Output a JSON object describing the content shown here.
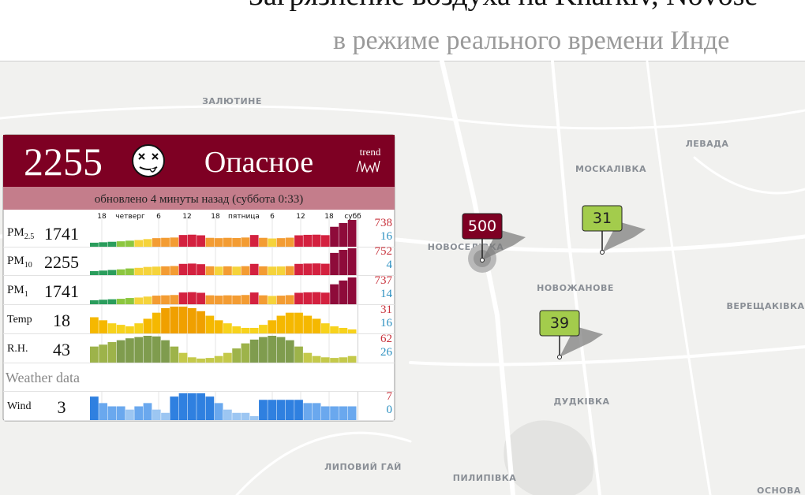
{
  "header": {
    "title": "Загрязнение воздуха на Kharkiv, Novose",
    "subtitle": "в режиме реального времени Инде"
  },
  "panel": {
    "aqi": 2255,
    "level": "Опасное",
    "trend_label": "trend",
    "updated": "обновлено 4 минуты назад (суббота 0:33)",
    "time_axis": [
      "18",
      "четверг",
      "6",
      "12",
      "18",
      "пятница",
      "6",
      "12",
      "18",
      "субб"
    ],
    "weather_heading": "Weather data",
    "rows": [
      {
        "name": "PM",
        "sub": "2.5",
        "value": 1741,
        "max": 738,
        "min": 16,
        "bars": [
          16,
          30,
          45,
          60,
          80,
          100,
          130,
          160,
          170,
          180,
          260,
          270,
          250,
          170,
          160,
          170,
          165,
          180,
          260,
          170,
          150,
          160,
          175,
          250,
          265,
          270,
          255,
          520,
          640,
          738
        ],
        "colors": [
          "#2a9d5c",
          "#2a9d5c",
          "#2a9d5c",
          "#8cc63f",
          "#8cc63f",
          "#f5d33b",
          "#f5d33b",
          "#f39c33",
          "#f39c33",
          "#f39c33",
          "#d3213f",
          "#d3213f",
          "#d3213f",
          "#f39c33",
          "#f39c33",
          "#f39c33",
          "#f39c33",
          "#f39c33",
          "#d3213f",
          "#f39c33",
          "#f5d33b",
          "#f39c33",
          "#f39c33",
          "#d3213f",
          "#d3213f",
          "#d3213f",
          "#d3213f",
          "#8e0b3a",
          "#8e0b3a",
          "#8e0b3a"
        ]
      },
      {
        "name": "PM",
        "sub": "10",
        "value": 2255,
        "max": 752,
        "min": 4,
        "bars": [
          4,
          20,
          40,
          60,
          90,
          110,
          140,
          150,
          160,
          170,
          240,
          250,
          230,
          160,
          150,
          160,
          150,
          165,
          240,
          160,
          150,
          155,
          165,
          240,
          250,
          255,
          245,
          600,
          700,
          752
        ],
        "colors": [
          "#2a9d5c",
          "#2a9d5c",
          "#2a9d5c",
          "#8cc63f",
          "#8cc63f",
          "#f5d33b",
          "#f5d33b",
          "#f5d33b",
          "#f39c33",
          "#f39c33",
          "#d3213f",
          "#d3213f",
          "#d3213f",
          "#f39c33",
          "#f5d33b",
          "#f39c33",
          "#f5d33b",
          "#f39c33",
          "#d3213f",
          "#f39c33",
          "#f5d33b",
          "#f5d33b",
          "#f39c33",
          "#d3213f",
          "#d3213f",
          "#d3213f",
          "#d3213f",
          "#8e0b3a",
          "#8e0b3a",
          "#8e0b3a"
        ]
      },
      {
        "name": "PM",
        "sub": "1",
        "value": 1741,
        "max": 737,
        "min": 14,
        "bars": [
          14,
          30,
          45,
          60,
          85,
          100,
          130,
          160,
          170,
          180,
          260,
          270,
          250,
          170,
          160,
          170,
          165,
          180,
          260,
          170,
          150,
          160,
          175,
          250,
          265,
          270,
          255,
          520,
          640,
          737
        ],
        "colors": [
          "#2a9d5c",
          "#2a9d5c",
          "#2a9d5c",
          "#8cc63f",
          "#8cc63f",
          "#f5d33b",
          "#f5d33b",
          "#f39c33",
          "#f39c33",
          "#f39c33",
          "#d3213f",
          "#d3213f",
          "#d3213f",
          "#f39c33",
          "#f39c33",
          "#f39c33",
          "#f39c33",
          "#f39c33",
          "#d3213f",
          "#f39c33",
          "#f5d33b",
          "#f39c33",
          "#f39c33",
          "#d3213f",
          "#d3213f",
          "#d3213f",
          "#d3213f",
          "#8e0b3a",
          "#8e0b3a",
          "#8e0b3a"
        ]
      },
      {
        "name": "Temp",
        "value": 18,
        "max": 31,
        "min": 16,
        "bars": [
          24,
          22,
          20,
          19,
          18,
          20,
          23,
          27,
          30,
          31,
          31,
          30,
          28,
          25,
          22,
          20,
          18,
          17,
          17,
          19,
          22,
          25,
          27,
          27,
          25,
          23,
          20,
          18,
          17,
          16
        ],
        "colors": [
          "#f5b800",
          "#f5b800",
          "#f7d21c",
          "#f7d21c",
          "#f7d21c",
          "#f7d21c",
          "#f5b800",
          "#f5b800",
          "#f0a000",
          "#f0a000",
          "#f0a000",
          "#f0a000",
          "#f0a000",
          "#f5b800",
          "#f5b800",
          "#f7d21c",
          "#f7d21c",
          "#f7d21c",
          "#f7d21c",
          "#f7d21c",
          "#f5b800",
          "#f5b800",
          "#f5b800",
          "#f5b800",
          "#f5b800",
          "#f5b800",
          "#f7d21c",
          "#f7d21c",
          "#f7d21c",
          "#f7d21c"
        ]
      },
      {
        "name": "R.H.",
        "value": 43,
        "max": 62,
        "min": 26,
        "bars": [
          45,
          48,
          52,
          55,
          58,
          60,
          62,
          61,
          55,
          45,
          35,
          28,
          26,
          27,
          30,
          35,
          42,
          50,
          56,
          60,
          62,
          60,
          55,
          45,
          35,
          30,
          28,
          27,
          28,
          30
        ],
        "colors": [
          "#9db34a",
          "#9db34a",
          "#9db34a",
          "#7f9c4e",
          "#7f9c4e",
          "#7f9c4e",
          "#7f9c4e",
          "#7f9c4e",
          "#7f9c4e",
          "#9db34a",
          "#c4c94a",
          "#c4c94a",
          "#c4c94a",
          "#c4c94a",
          "#c4c94a",
          "#c4c94a",
          "#9db34a",
          "#9db34a",
          "#7f9c4e",
          "#7f9c4e",
          "#7f9c4e",
          "#7f9c4e",
          "#7f9c4e",
          "#9db34a",
          "#c4c94a",
          "#c4c94a",
          "#c4c94a",
          "#c4c94a",
          "#c4c94a",
          "#c4c94a"
        ]
      },
      {
        "name": "Wind",
        "value": 3,
        "max": 7,
        "min": 0,
        "bars": [
          6,
          4,
          3,
          3,
          2,
          3,
          4,
          2,
          1,
          6,
          7,
          7,
          7,
          6,
          4,
          2,
          1,
          1,
          0,
          5,
          5,
          5,
          5,
          5,
          4,
          4,
          3,
          3,
          3,
          3
        ],
        "colors": [
          "#2f80e0",
          "#6aa8ee",
          "#6aa8ee",
          "#6aa8ee",
          "#9cc6f2",
          "#6aa8ee",
          "#6aa8ee",
          "#9cc6f2",
          "#9cc6f2",
          "#2f80e0",
          "#2f80e0",
          "#2f80e0",
          "#2f80e0",
          "#2f80e0",
          "#6aa8ee",
          "#9cc6f2",
          "#9cc6f2",
          "#9cc6f2",
          "#9cc6f2",
          "#2f80e0",
          "#2f80e0",
          "#2f80e0",
          "#2f80e0",
          "#2f80e0",
          "#6aa8ee",
          "#6aa8ee",
          "#6aa8ee",
          "#6aa8ee",
          "#6aa8ee",
          "#6aa8ee"
        ]
      }
    ]
  },
  "map": {
    "places": [
      "ЗАЛЮТИНЕ",
      "ЛЕВАДА",
      "МОСКАЛІВКА",
      "НОВОСЕЛІВКА",
      "НОВОЖАНОВЕ",
      "ВЕРЕЩАКІВКА",
      "ДУДКІВКА",
      "ЛИПОВИЙ ГАЙ",
      "ПИЛИПІВКА",
      "ОСНОВА"
    ],
    "stations": [
      {
        "aqi": 500,
        "color": "#7e0023",
        "text_color": "#ffffff"
      },
      {
        "aqi": 31,
        "color": "#a3cc4c",
        "text_color": "#222222"
      },
      {
        "aqi": 39,
        "color": "#a3cc4c",
        "text_color": "#222222"
      }
    ]
  }
}
